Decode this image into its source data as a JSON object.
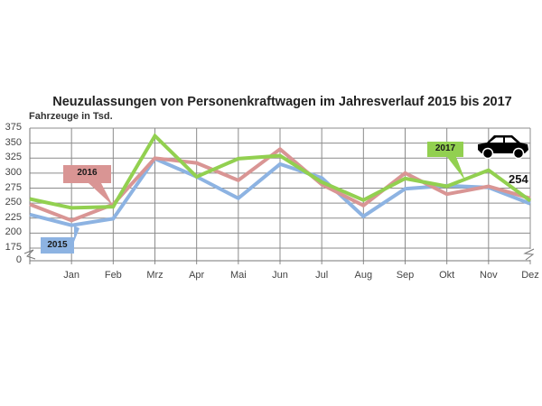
{
  "chart_data": {
    "type": "line",
    "title": "Neuzulassungen von Personenkraftwagen im Jahresverlauf 2015 bis 2017",
    "subtitle": "Fahrzeuge in Tsd.",
    "xlabel": "",
    "ylabel": "Fahrzeuge in Tsd.",
    "categories": [
      "",
      "Jan",
      "Feb",
      "Mrz",
      "Apr",
      "Mai",
      "Jun",
      "Jul",
      "Aug",
      "Sep",
      "Okt",
      "Nov",
      "Dez"
    ],
    "x_tick_labels": [
      "Jan",
      "Feb",
      "Mrz",
      "Apr",
      "Mai",
      "Jun",
      "Jul",
      "Aug",
      "Sep",
      "Okt",
      "Nov",
      "Dez"
    ],
    "y_tick_labels": [
      "375",
      "350",
      "325",
      "300",
      "275",
      "250",
      "225",
      "200",
      "175",
      "0"
    ],
    "ylim": [
      175,
      375
    ],
    "y_axis_break": true,
    "grid": true,
    "series": [
      {
        "name": "2015",
        "color": "#8db3e2",
        "values": [
          231,
          213,
          224,
          324,
          294,
          258,
          315,
          292,
          228,
          274,
          279,
          276,
          249
        ]
      },
      {
        "name": "2016",
        "color": "#d99594",
        "values": [
          248,
          221,
          248,
          325,
          317,
          288,
          340,
          281,
          246,
          300,
          265,
          278,
          258
        ]
      },
      {
        "name": "2017",
        "color": "#92d050",
        "values": [
          257,
          242,
          244,
          362,
          294,
          324,
          329,
          285,
          255,
          291,
          278,
          305,
          254
        ]
      }
    ],
    "annotations": [
      {
        "text": "2015",
        "target_series": "2015"
      },
      {
        "text": "2016",
        "target_series": "2016"
      },
      {
        "text": "2017",
        "target_series": "2017"
      },
      {
        "text": "254",
        "target": "2017 Dez"
      }
    ],
    "icon": "car-icon"
  },
  "labels": {
    "title": "Neuzulassungen von Personenkraftwagen im Jahresverlauf 2015 bis 2017",
    "subtitle": "Fahrzeuge in Tsd.",
    "callout_2015": "2015",
    "callout_2016": "2016",
    "callout_2017": "2017",
    "last_value": "254"
  }
}
